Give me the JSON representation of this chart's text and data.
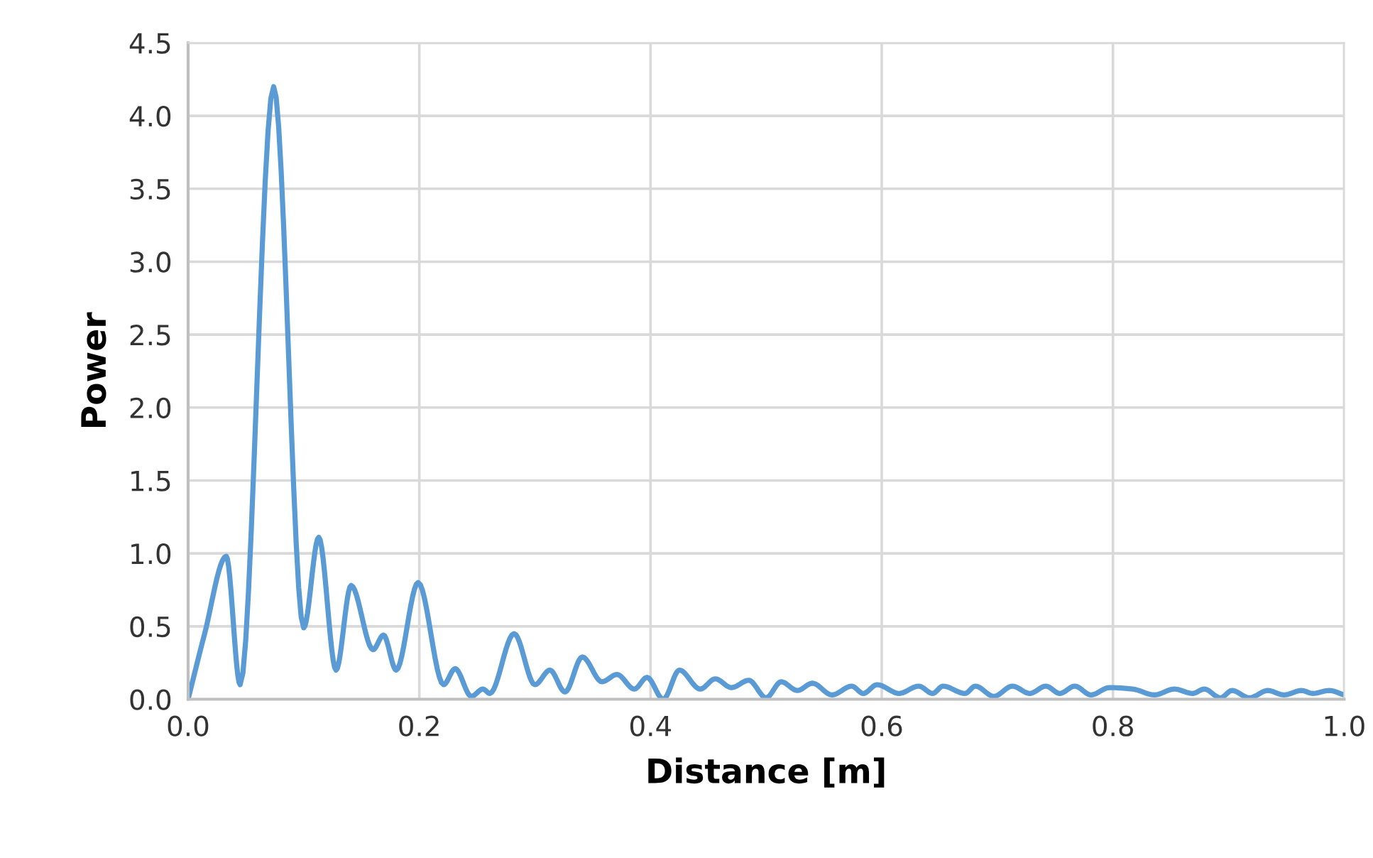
{
  "chart_data": {
    "type": "line",
    "xlabel": "Distance [m]",
    "ylabel": "Power",
    "xlim": [
      0,
      1
    ],
    "ylim": [
      0,
      4.5
    ],
    "xticks": [
      {
        "value": 0,
        "label": "0.0"
      },
      {
        "value": 0.2,
        "label": "0.2"
      },
      {
        "value": 0.4,
        "label": "0.4"
      },
      {
        "value": 0.6,
        "label": "0.6"
      },
      {
        "value": 0.8,
        "label": "0.8"
      },
      {
        "value": 1,
        "label": "1.0"
      }
    ],
    "yticks": [
      {
        "value": 0,
        "label": "0.0"
      },
      {
        "value": 0.5,
        "label": "0.5"
      },
      {
        "value": 1,
        "label": "1.0"
      },
      {
        "value": 1.5,
        "label": "1.5"
      },
      {
        "value": 2,
        "label": "2.0"
      },
      {
        "value": 2.5,
        "label": "2.5"
      },
      {
        "value": 3,
        "label": "3.0"
      },
      {
        "value": 3.5,
        "label": "3.5"
      },
      {
        "value": 4,
        "label": "4.0"
      },
      {
        "value": 4.5,
        "label": "4.5"
      }
    ],
    "grid": true,
    "marker": "none",
    "line_style": "solid",
    "series": [
      {
        "color": "#5b9bd5",
        "x": [
          0,
          0.014,
          0.033,
          0.045,
          0.074,
          0.1,
          0.113,
          0.128,
          0.141,
          0.16,
          0.169,
          0.18,
          0.199,
          0.221,
          0.231,
          0.245,
          0.255,
          0.261,
          0.282,
          0.3,
          0.313,
          0.326,
          0.341,
          0.358,
          0.371,
          0.386,
          0.397,
          0.411,
          0.425,
          0.443,
          0.456,
          0.47,
          0.485,
          0.5,
          0.513,
          0.527,
          0.54,
          0.557,
          0.574,
          0.584,
          0.596,
          0.615,
          0.632,
          0.644,
          0.653,
          0.672,
          0.681,
          0.697,
          0.713,
          0.728,
          0.742,
          0.754,
          0.767,
          0.781,
          0.797,
          0.817,
          0.836,
          0.853,
          0.869,
          0.879,
          0.893,
          0.903,
          0.918,
          0.934,
          0.948,
          0.963,
          0.973,
          0.987,
          1.0
        ],
        "values": [
          0,
          0.44,
          0.98,
          0.1,
          4.2,
          0.49,
          1.11,
          0.2,
          0.78,
          0.34,
          0.44,
          0.2,
          0.8,
          0.1,
          0.21,
          0.02,
          0.07,
          0.04,
          0.45,
          0.1,
          0.2,
          0.05,
          0.29,
          0.12,
          0.17,
          0.07,
          0.15,
          0.0,
          0.2,
          0.07,
          0.14,
          0.08,
          0.13,
          0.01,
          0.12,
          0.06,
          0.11,
          0.03,
          0.09,
          0.04,
          0.1,
          0.04,
          0.09,
          0.04,
          0.09,
          0.04,
          0.09,
          0.02,
          0.09,
          0.04,
          0.09,
          0.04,
          0.09,
          0.03,
          0.08,
          0.07,
          0.03,
          0.07,
          0.04,
          0.07,
          0.01,
          0.06,
          0.01,
          0.06,
          0.03,
          0.06,
          0.04,
          0.06,
          0.03
        ]
      }
    ]
  }
}
